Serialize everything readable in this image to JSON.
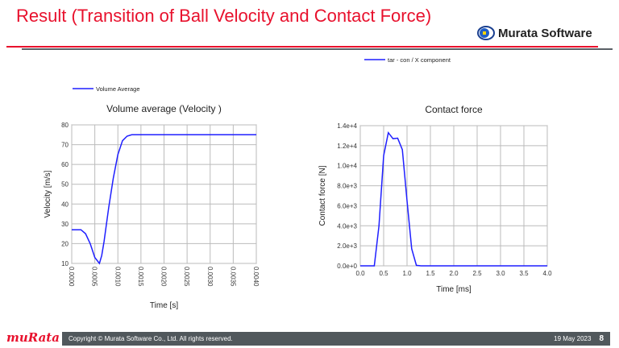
{
  "header": {
    "title": "Result  (Transition of Ball Velocity and Contact Force)",
    "brand": "Murata Software"
  },
  "footer": {
    "logo": "muRata",
    "copyright": "Copyright © Murata Software Co., Ltd. All rights reserved.",
    "date": "19 May 2023",
    "page": "8"
  },
  "colors": {
    "accent": "#e8112d",
    "series": "#1f1fff",
    "footer_bg": "#51585c"
  },
  "chart_data": [
    {
      "type": "line",
      "title": "Volume average (Velocity )",
      "xlabel": "Time [s]",
      "ylabel": "Velocity [m/s]",
      "legend": "Volume Average",
      "legend_placement": "top-left",
      "grid": true,
      "xlim": [
        0,
        0.004
      ],
      "ylim": [
        10,
        80
      ],
      "xticks": [
        "0.0000",
        "0.0005",
        "0.0010",
        "0.0015",
        "0.0020",
        "0.0025",
        "0.0030",
        "0.0035",
        "0.0040"
      ],
      "yticks": [
        "10",
        "20",
        "30",
        "40",
        "50",
        "60",
        "70",
        "80"
      ],
      "x": [
        0,
        0.0002,
        0.0003,
        0.0004,
        0.0005,
        0.0006,
        0.00065,
        0.0007,
        0.0008,
        0.0009,
        0.001,
        0.0011,
        0.0012,
        0.0013,
        0.0015,
        0.002,
        0.0025,
        0.003,
        0.0035,
        0.004
      ],
      "y": [
        27,
        27,
        25,
        20,
        13,
        10,
        14,
        21,
        38,
        53,
        65,
        72,
        74.3,
        75,
        75,
        75,
        75,
        75,
        75,
        75
      ]
    },
    {
      "type": "line",
      "title": "Contact force",
      "xlabel": "Time  [ms]",
      "ylabel": "Contact force  [N]",
      "legend": "tar - con / X component",
      "legend_placement": "top",
      "grid": true,
      "xlim": [
        0,
        4
      ],
      "ylim": [
        0,
        14000
      ],
      "xticks": [
        "0.0",
        "0.5",
        "1.0",
        "1.5",
        "2.0",
        "2.5",
        "3.0",
        "3.5",
        "4.0"
      ],
      "yticks": [
        "0.0e+0",
        "2.0e+3",
        "4.0e+3",
        "6.0e+3",
        "8.0e+3",
        "1.0e+4",
        "1.2e+4",
        "1.4e+4"
      ],
      "x": [
        0,
        0.3,
        0.4,
        0.5,
        0.6,
        0.7,
        0.8,
        0.9,
        1.0,
        1.1,
        1.2,
        1.3,
        4.0
      ],
      "y": [
        0,
        0,
        4000,
        11000,
        13300,
        12700,
        12750,
        11600,
        6500,
        1700,
        50,
        0,
        0
      ]
    }
  ]
}
